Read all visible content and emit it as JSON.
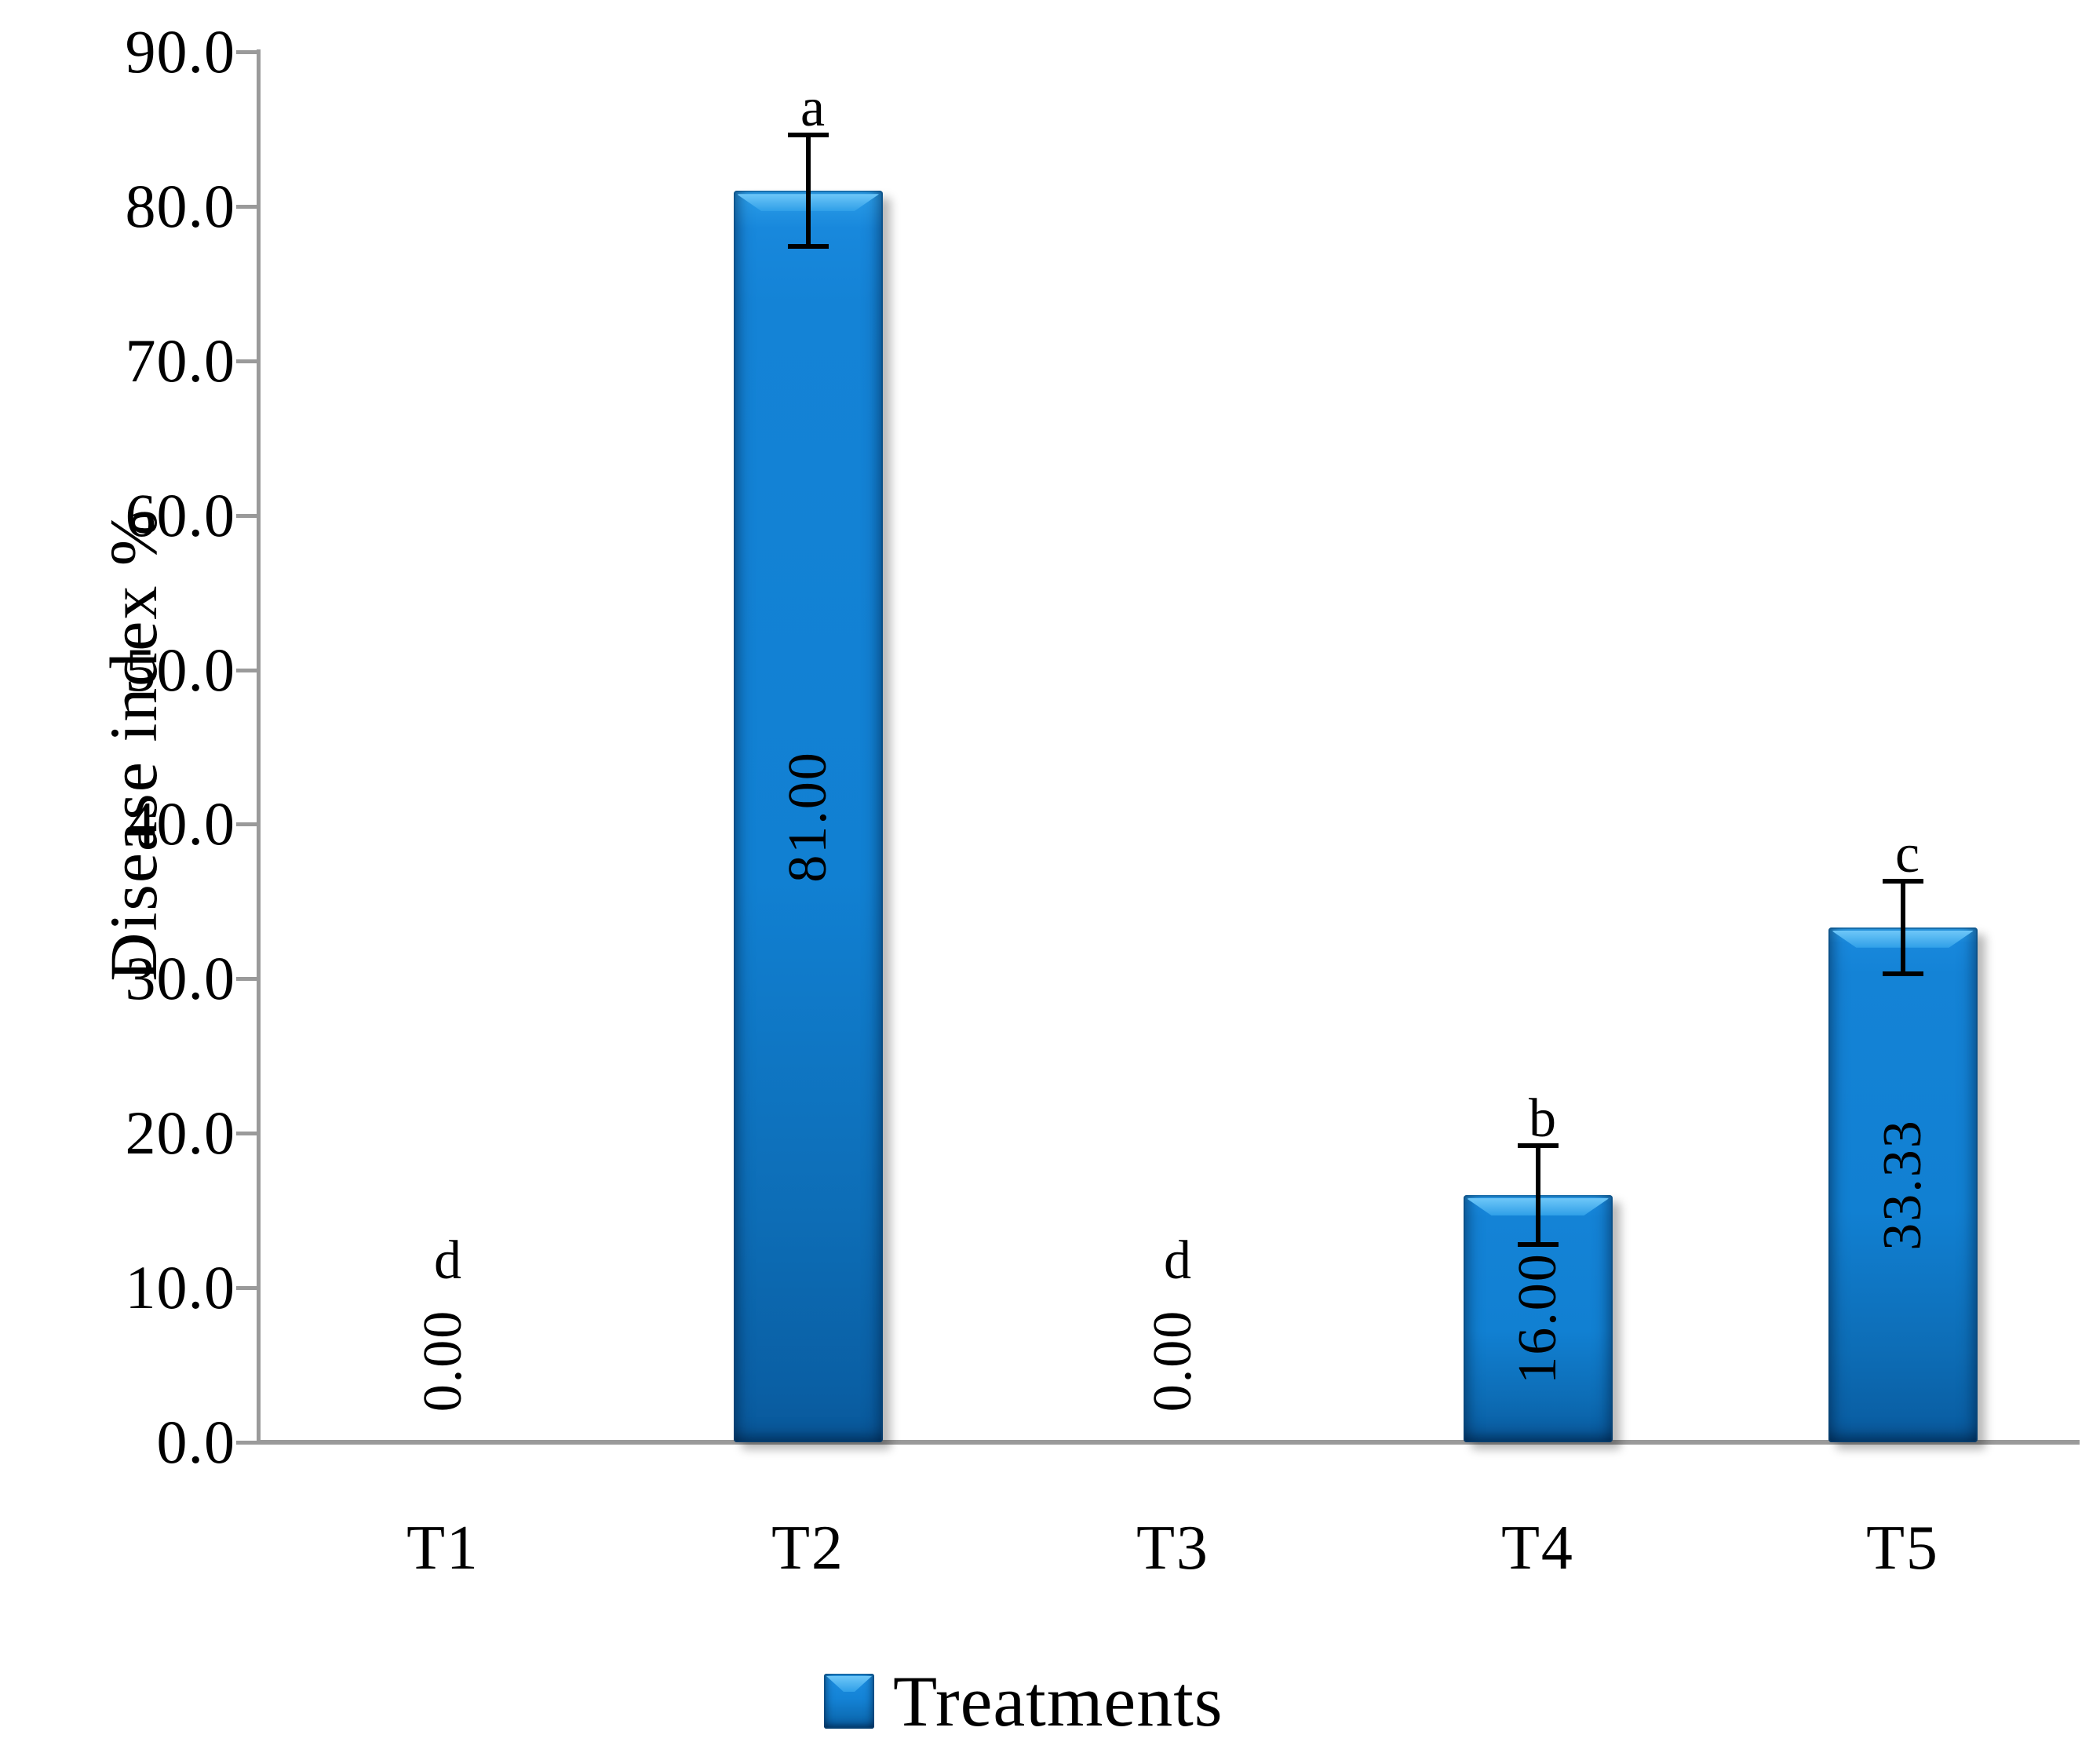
{
  "chart_data": {
    "type": "bar",
    "title": "",
    "categories": [
      "T1",
      "T2",
      "T3",
      "T4",
      "T5"
    ],
    "values": [
      0,
      81,
      0,
      16,
      33.33
    ],
    "data_labels": [
      "0.00",
      "81.00",
      "0.00",
      "16.00",
      "33.33"
    ],
    "sig_letters": [
      "d",
      "a",
      "d",
      "b",
      "c"
    ],
    "error_bars": [
      0,
      3.6,
      0,
      3.2,
      3.0
    ],
    "ylabel": "Disease index %",
    "xlabel": "",
    "ylim": [
      0,
      90
    ],
    "ytick_step": 10,
    "ytick_labels": [
      "0.0",
      "10.0",
      "20.0",
      "30.0",
      "40.0",
      "50.0",
      "60.0",
      "70.0",
      "80.0",
      "90.0"
    ],
    "grid": false,
    "legend": {
      "position": "bottom",
      "entries": [
        {
          "label": "Treatments",
          "color": "#1483d6"
        }
      ]
    },
    "colors": {
      "bar_fill": "#1483d6",
      "bar_highlight": "#6ec7f8",
      "bar_shade": "#0a5fa4",
      "axis_line": "#9a9a9a",
      "text": "#000000",
      "error_bar": "#000000"
    }
  }
}
